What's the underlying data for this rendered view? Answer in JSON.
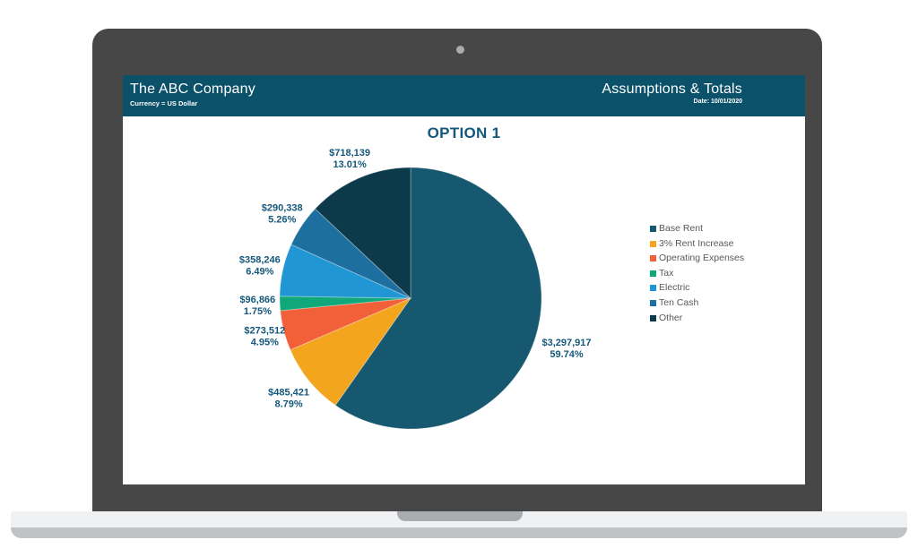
{
  "laptop": {
    "bezel_color": "#474747",
    "base_color": "#f0f1f2",
    "base_lip_color": "#bfc3c5",
    "hinge_color": "#a9adb0",
    "webcam_color": "#ababab"
  },
  "screen": {
    "header": {
      "bg_color": "#0b5169",
      "text_color": "#ffffff",
      "company": "The ABC Company",
      "currency_note": "Currency = US Dollar",
      "report_title": "Assumptions & Totals",
      "date_label": "Date: 10/01/2020"
    }
  },
  "chart_data": {
    "type": "pie",
    "title": "OPTION 1",
    "legend_position": "right",
    "start_angle_deg": 0,
    "direction": "clockwise",
    "label_color": "#14587b",
    "title_color": "#14587b",
    "legend_text_color": "#595959",
    "slices": [
      {
        "label": "Base Rent",
        "value": 3297917,
        "value_label": "$3,297,917",
        "pct": 59.74,
        "pct_label": "59.74%",
        "color": "#165870"
      },
      {
        "label": "3% Rent Increase",
        "value": 485421,
        "value_label": "$485,421",
        "pct": 8.79,
        "pct_label": "8.79%",
        "color": "#f2a51d"
      },
      {
        "label": "Operating Expenses",
        "value": 273512,
        "value_label": "$273,512",
        "pct": 4.95,
        "pct_label": "4.95%",
        "color": "#f2603a"
      },
      {
        "label": "Tax",
        "value": 96866,
        "value_label": "$96,866",
        "pct": 1.75,
        "pct_label": "1.75%",
        "color": "#10a87a"
      },
      {
        "label": "Electric",
        "value": 358246,
        "value_label": "$358,246",
        "pct": 6.49,
        "pct_label": "6.49%",
        "color": "#2196d5"
      },
      {
        "label": "Ten Cash",
        "value": 290338,
        "value_label": "$290,338",
        "pct": 5.26,
        "pct_label": "5.26%",
        "color": "#1c6f9f"
      },
      {
        "label": "Other",
        "value": 718139,
        "value_label": "$718,139",
        "pct": 13.01,
        "pct_label": "13.01%",
        "color": "#0c3a4a"
      }
    ],
    "layout": {
      "center": [
        321,
        249
      ],
      "radius": 146,
      "label_radius_factors": [
        1.25,
        1.2,
        1.15,
        1.17,
        1.18,
        1.18,
        1.17
      ]
    }
  }
}
